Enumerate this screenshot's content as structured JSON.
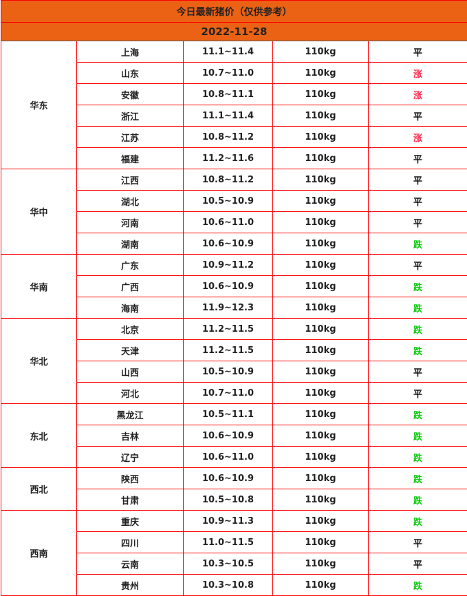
{
  "title": "今日最新猪价（仅供参考）",
  "date": "2022-11-28",
  "colors": {
    "header_bg": "#eb6214",
    "border": "#ff0000",
    "up": "#ff2d4f",
    "down": "#11cc11",
    "flat": "#111111"
  },
  "regions": [
    {
      "name": "华东",
      "rows": [
        {
          "province": "上海",
          "price": "11.1~11.4",
          "weight": "110kg",
          "trend": "平"
        },
        {
          "province": "山东",
          "price": "10.7~11.0",
          "weight": "110kg",
          "trend": "涨"
        },
        {
          "province": "安徽",
          "price": "10.8~11.1",
          "weight": "110kg",
          "trend": "涨"
        },
        {
          "province": "浙江",
          "price": "11.1~11.4",
          "weight": "110kg",
          "trend": "平"
        },
        {
          "province": "江苏",
          "price": "10.8~11.2",
          "weight": "110kg",
          "trend": "涨"
        },
        {
          "province": "福建",
          "price": "11.2~11.6",
          "weight": "110kg",
          "trend": "平"
        }
      ]
    },
    {
      "name": "华中",
      "rows": [
        {
          "province": "江西",
          "price": "10.8~11.2",
          "weight": "110kg",
          "trend": "平"
        },
        {
          "province": "湖北",
          "price": "10.5~10.9",
          "weight": "110kg",
          "trend": "平"
        },
        {
          "province": "河南",
          "price": "10.6~11.0",
          "weight": "110kg",
          "trend": "平"
        },
        {
          "province": "湖南",
          "price": "10.6~10.9",
          "weight": "110kg",
          "trend": "跌"
        }
      ]
    },
    {
      "name": "华南",
      "rows": [
        {
          "province": "广东",
          "price": "10.9~11.2",
          "weight": "110kg",
          "trend": "平"
        },
        {
          "province": "广西",
          "price": "10.6~10.9",
          "weight": "110kg",
          "trend": "跌"
        },
        {
          "province": "海南",
          "price": "11.9~12.3",
          "weight": "110kg",
          "trend": "跌"
        }
      ]
    },
    {
      "name": "华北",
      "rows": [
        {
          "province": "北京",
          "price": "11.2~11.5",
          "weight": "110kg",
          "trend": "跌"
        },
        {
          "province": "天津",
          "price": "11.2~11.5",
          "weight": "110kg",
          "trend": "跌"
        },
        {
          "province": "山西",
          "price": "10.5~10.9",
          "weight": "110kg",
          "trend": "平"
        },
        {
          "province": "河北",
          "price": "10.7~11.0",
          "weight": "110kg",
          "trend": "平"
        }
      ]
    },
    {
      "name": "东北",
      "rows": [
        {
          "province": "黑龙江",
          "price": "10.5~11.1",
          "weight": "110kg",
          "trend": "跌"
        },
        {
          "province": "吉林",
          "price": "10.6~10.9",
          "weight": "110kg",
          "trend": "跌"
        },
        {
          "province": "辽宁",
          "price": "10.6~11.0",
          "weight": "110kg",
          "trend": "跌"
        }
      ]
    },
    {
      "name": "西北",
      "rows": [
        {
          "province": "陕西",
          "price": "10.6~10.9",
          "weight": "110kg",
          "trend": "跌"
        },
        {
          "province": "甘肃",
          "price": "10.5~10.8",
          "weight": "110kg",
          "trend": "跌"
        }
      ]
    },
    {
      "name": "西南",
      "rows": [
        {
          "province": "重庆",
          "price": "10.9~11.3",
          "weight": "110kg",
          "trend": "跌"
        },
        {
          "province": "四川",
          "price": "11.0~11.5",
          "weight": "110kg",
          "trend": "平"
        },
        {
          "province": "云南",
          "price": "10.3~10.5",
          "weight": "110kg",
          "trend": "平"
        },
        {
          "province": "贵州",
          "price": "10.3~10.8",
          "weight": "110kg",
          "trend": "跌"
        }
      ]
    }
  ]
}
